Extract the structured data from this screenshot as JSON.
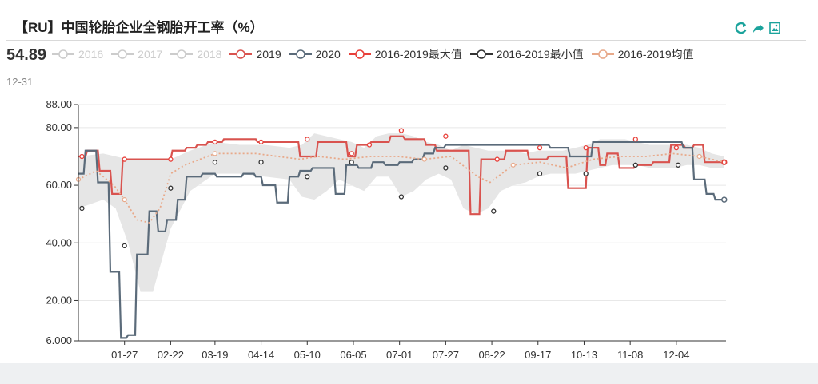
{
  "title": "【RU】中国轮胎企业全钢胎开工率（%）",
  "tooltip": {
    "value": "54.89",
    "date": "12-31"
  },
  "toolbox": {
    "icons": [
      "refresh-icon",
      "share-icon",
      "save-image-icon"
    ],
    "color": "#1ba39c"
  },
  "legend": [
    {
      "name": "2016",
      "color": "#cccccc",
      "active": false
    },
    {
      "name": "2017",
      "color": "#cccccc",
      "active": false
    },
    {
      "name": "2018",
      "color": "#cccccc",
      "active": false
    },
    {
      "name": "2019",
      "color": "#d9534f",
      "active": true
    },
    {
      "name": "2020",
      "color": "#5b6b7a",
      "active": true
    },
    {
      "name": "2016-2019最大值",
      "color": "#e8403a",
      "active": true
    },
    {
      "name": "2016-2019最小值",
      "color": "#333333",
      "active": true
    },
    {
      "name": "2016-2019均值",
      "color": "#e8a98a",
      "active": true
    }
  ],
  "chart_data": {
    "type": "line",
    "y_ticks": [
      "88.00",
      "80.00",
      "60.00",
      "40.00",
      "20.00",
      "6.000"
    ],
    "y_tick_values": [
      88,
      80,
      60,
      40,
      20,
      6
    ],
    "ylim": [
      6,
      88
    ],
    "x_ticks": [
      "01-27",
      "02-22",
      "03-19",
      "04-14",
      "05-10",
      "06-05",
      "07-01",
      "07-27",
      "08-22",
      "09-17",
      "10-13",
      "11-08",
      "12-04"
    ],
    "x_tick_days": [
      26,
      52,
      77,
      103,
      129,
      155,
      181,
      207,
      233,
      259,
      285,
      311,
      337
    ],
    "xlim_days": [
      0,
      365
    ],
    "grid": true,
    "band": {
      "name": "2016-2019 range",
      "color": "#e6e6e6",
      "x_days": [
        0,
        14,
        21,
        28,
        35,
        42,
        52,
        63,
        77,
        91,
        105,
        119,
        126,
        133,
        140,
        147,
        154,
        161,
        168,
        175,
        182,
        189,
        196,
        203,
        210,
        217,
        224,
        231,
        238,
        245,
        252,
        259,
        266,
        273,
        280,
        287,
        294,
        301,
        308,
        315,
        322,
        329,
        336,
        343,
        350,
        357,
        364
      ],
      "upper": [
        70,
        71,
        70,
        69,
        69,
        69,
        69,
        72,
        75,
        74,
        74,
        73,
        74,
        78,
        77,
        76,
        75,
        73,
        77,
        78,
        78,
        77,
        75,
        74,
        72,
        74,
        73,
        72,
        72,
        72,
        71,
        72,
        72,
        72,
        73,
        74,
        76,
        76,
        76,
        75,
        74,
        74,
        74,
        74,
        73,
        71,
        70
      ],
      "lower": [
        52,
        55,
        52,
        40,
        23,
        23,
        45,
        58,
        64,
        64,
        63,
        62,
        56,
        55,
        58,
        62,
        60,
        58,
        63,
        63,
        56,
        58,
        62,
        64,
        62,
        52,
        50,
        52,
        58,
        60,
        61,
        63,
        64,
        64,
        64,
        65,
        66,
        67,
        67,
        67,
        66,
        66,
        66,
        67,
        67,
        66,
        66
      ]
    },
    "series": [
      {
        "name": "2019",
        "color": "#d9534f",
        "points": [
          [
            0,
            70
          ],
          [
            4,
            70
          ],
          [
            5,
            72
          ],
          [
            11,
            72
          ],
          [
            12,
            65
          ],
          [
            18,
            65
          ],
          [
            19,
            57
          ],
          [
            24,
            57
          ],
          [
            25,
            69
          ],
          [
            52,
            69
          ],
          [
            53,
            72
          ],
          [
            60,
            72
          ],
          [
            61,
            73
          ],
          [
            66,
            73
          ],
          [
            67,
            74
          ],
          [
            72,
            74
          ],
          [
            73,
            75
          ],
          [
            81,
            75
          ],
          [
            82,
            76
          ],
          [
            100,
            76
          ],
          [
            101,
            75
          ],
          [
            124,
            75
          ],
          [
            125,
            70
          ],
          [
            134,
            70
          ],
          [
            135,
            75
          ],
          [
            151,
            75
          ],
          [
            152,
            70
          ],
          [
            156,
            70
          ],
          [
            157,
            74
          ],
          [
            164,
            74
          ],
          [
            165,
            75
          ],
          [
            175,
            75
          ],
          [
            176,
            77
          ],
          [
            183,
            77
          ],
          [
            184,
            76
          ],
          [
            195,
            76
          ],
          [
            196,
            74
          ],
          [
            201,
            74
          ],
          [
            202,
            72
          ],
          [
            220,
            72
          ],
          [
            221,
            50
          ],
          [
            226,
            50
          ],
          [
            227,
            69
          ],
          [
            240,
            69
          ],
          [
            241,
            72
          ],
          [
            253,
            72
          ],
          [
            254,
            69
          ],
          [
            264,
            69
          ],
          [
            265,
            70
          ],
          [
            275,
            70
          ],
          [
            276,
            59
          ],
          [
            286,
            59
          ],
          [
            287,
            73
          ],
          [
            293,
            73
          ],
          [
            294,
            67
          ],
          [
            297,
            67
          ],
          [
            298,
            71
          ],
          [
            304,
            71
          ],
          [
            305,
            66
          ],
          [
            313,
            66
          ],
          [
            314,
            67
          ],
          [
            323,
            67
          ],
          [
            324,
            68
          ],
          [
            333,
            68
          ],
          [
            334,
            74
          ],
          [
            341,
            74
          ],
          [
            342,
            73
          ],
          [
            346,
            73
          ],
          [
            347,
            74
          ],
          [
            352,
            74
          ],
          [
            353,
            68
          ],
          [
            360,
            68
          ],
          [
            361,
            68
          ],
          [
            364,
            68
          ]
        ]
      },
      {
        "name": "2020",
        "color": "#5b6b7a",
        "points": [
          [
            0,
            64
          ],
          [
            3,
            64
          ],
          [
            4,
            72
          ],
          [
            10,
            72
          ],
          [
            11,
            61
          ],
          [
            17,
            61
          ],
          [
            18,
            30
          ],
          [
            23,
            30
          ],
          [
            24,
            7
          ],
          [
            27,
            7
          ],
          [
            28,
            8
          ],
          [
            32,
            8
          ],
          [
            33,
            36
          ],
          [
            39,
            36
          ],
          [
            40,
            51
          ],
          [
            44,
            51
          ],
          [
            45,
            44
          ],
          [
            49,
            44
          ],
          [
            50,
            48
          ],
          [
            55,
            48
          ],
          [
            56,
            55
          ],
          [
            60,
            55
          ],
          [
            61,
            63
          ],
          [
            69,
            63
          ],
          [
            70,
            64
          ],
          [
            77,
            64
          ],
          [
            78,
            63
          ],
          [
            92,
            63
          ],
          [
            93,
            64
          ],
          [
            99,
            64
          ],
          [
            100,
            63
          ],
          [
            103,
            63
          ],
          [
            104,
            60
          ],
          [
            111,
            60
          ],
          [
            112,
            54
          ],
          [
            118,
            54
          ],
          [
            119,
            63
          ],
          [
            124,
            63
          ],
          [
            125,
            65
          ],
          [
            131,
            65
          ],
          [
            132,
            66
          ],
          [
            137,
            66
          ],
          [
            138,
            66
          ],
          [
            144,
            66
          ],
          [
            145,
            57
          ],
          [
            150,
            57
          ],
          [
            151,
            67
          ],
          [
            157,
            67
          ],
          [
            158,
            66
          ],
          [
            165,
            66
          ],
          [
            166,
            68
          ],
          [
            172,
            68
          ],
          [
            173,
            67
          ],
          [
            180,
            67
          ],
          [
            181,
            68
          ],
          [
            188,
            68
          ],
          [
            189,
            69
          ],
          [
            194,
            69
          ],
          [
            195,
            71
          ],
          [
            200,
            71
          ],
          [
            201,
            73
          ],
          [
            206,
            73
          ],
          [
            207,
            74
          ],
          [
            265,
            74
          ],
          [
            266,
            73
          ],
          [
            276,
            73
          ],
          [
            277,
            70
          ],
          [
            289,
            70
          ],
          [
            290,
            75
          ],
          [
            340,
            75
          ],
          [
            341,
            73
          ],
          [
            346,
            73
          ],
          [
            347,
            62
          ],
          [
            353,
            62
          ],
          [
            354,
            57
          ],
          [
            358,
            57
          ],
          [
            359,
            55
          ],
          [
            364,
            55
          ]
        ]
      },
      {
        "name": "2016-2019最大值",
        "color": "#e8403a",
        "x_days": [
          2,
          26,
          52,
          77,
          103,
          129,
          154,
          164,
          182,
          207,
          236,
          260,
          286,
          314,
          337,
          364
        ],
        "values": [
          70,
          69,
          69,
          75,
          75,
          76,
          71,
          74,
          79,
          77,
          69,
          73,
          73,
          76,
          73,
          68
        ]
      },
      {
        "name": "2016-2019最小值",
        "color": "#333333",
        "x_days": [
          2,
          26,
          52,
          77,
          103,
          129,
          154,
          182,
          207,
          234,
          260,
          286,
          314,
          338
        ],
        "values": [
          52,
          39,
          59,
          68,
          68,
          63,
          68,
          56,
          66,
          51,
          64,
          64,
          67,
          67
        ]
      },
      {
        "name": "2016-2019均值",
        "color": "#e8a98a",
        "x_days": [
          0,
          10,
          20,
          26,
          33,
          40,
          46,
          52,
          60,
          77,
          100,
          125,
          135,
          150,
          165,
          180,
          195,
          210,
          225,
          232,
          245,
          260,
          275,
          290,
          305,
          320,
          335,
          350,
          364
        ],
        "values": [
          62,
          65,
          60,
          55,
          48,
          47,
          52,
          64,
          67,
          71,
          71,
          69,
          70,
          69,
          70,
          70,
          69,
          70,
          63,
          61,
          67,
          68,
          66,
          69,
          70,
          70,
          71,
          70,
          68
        ]
      }
    ]
  }
}
